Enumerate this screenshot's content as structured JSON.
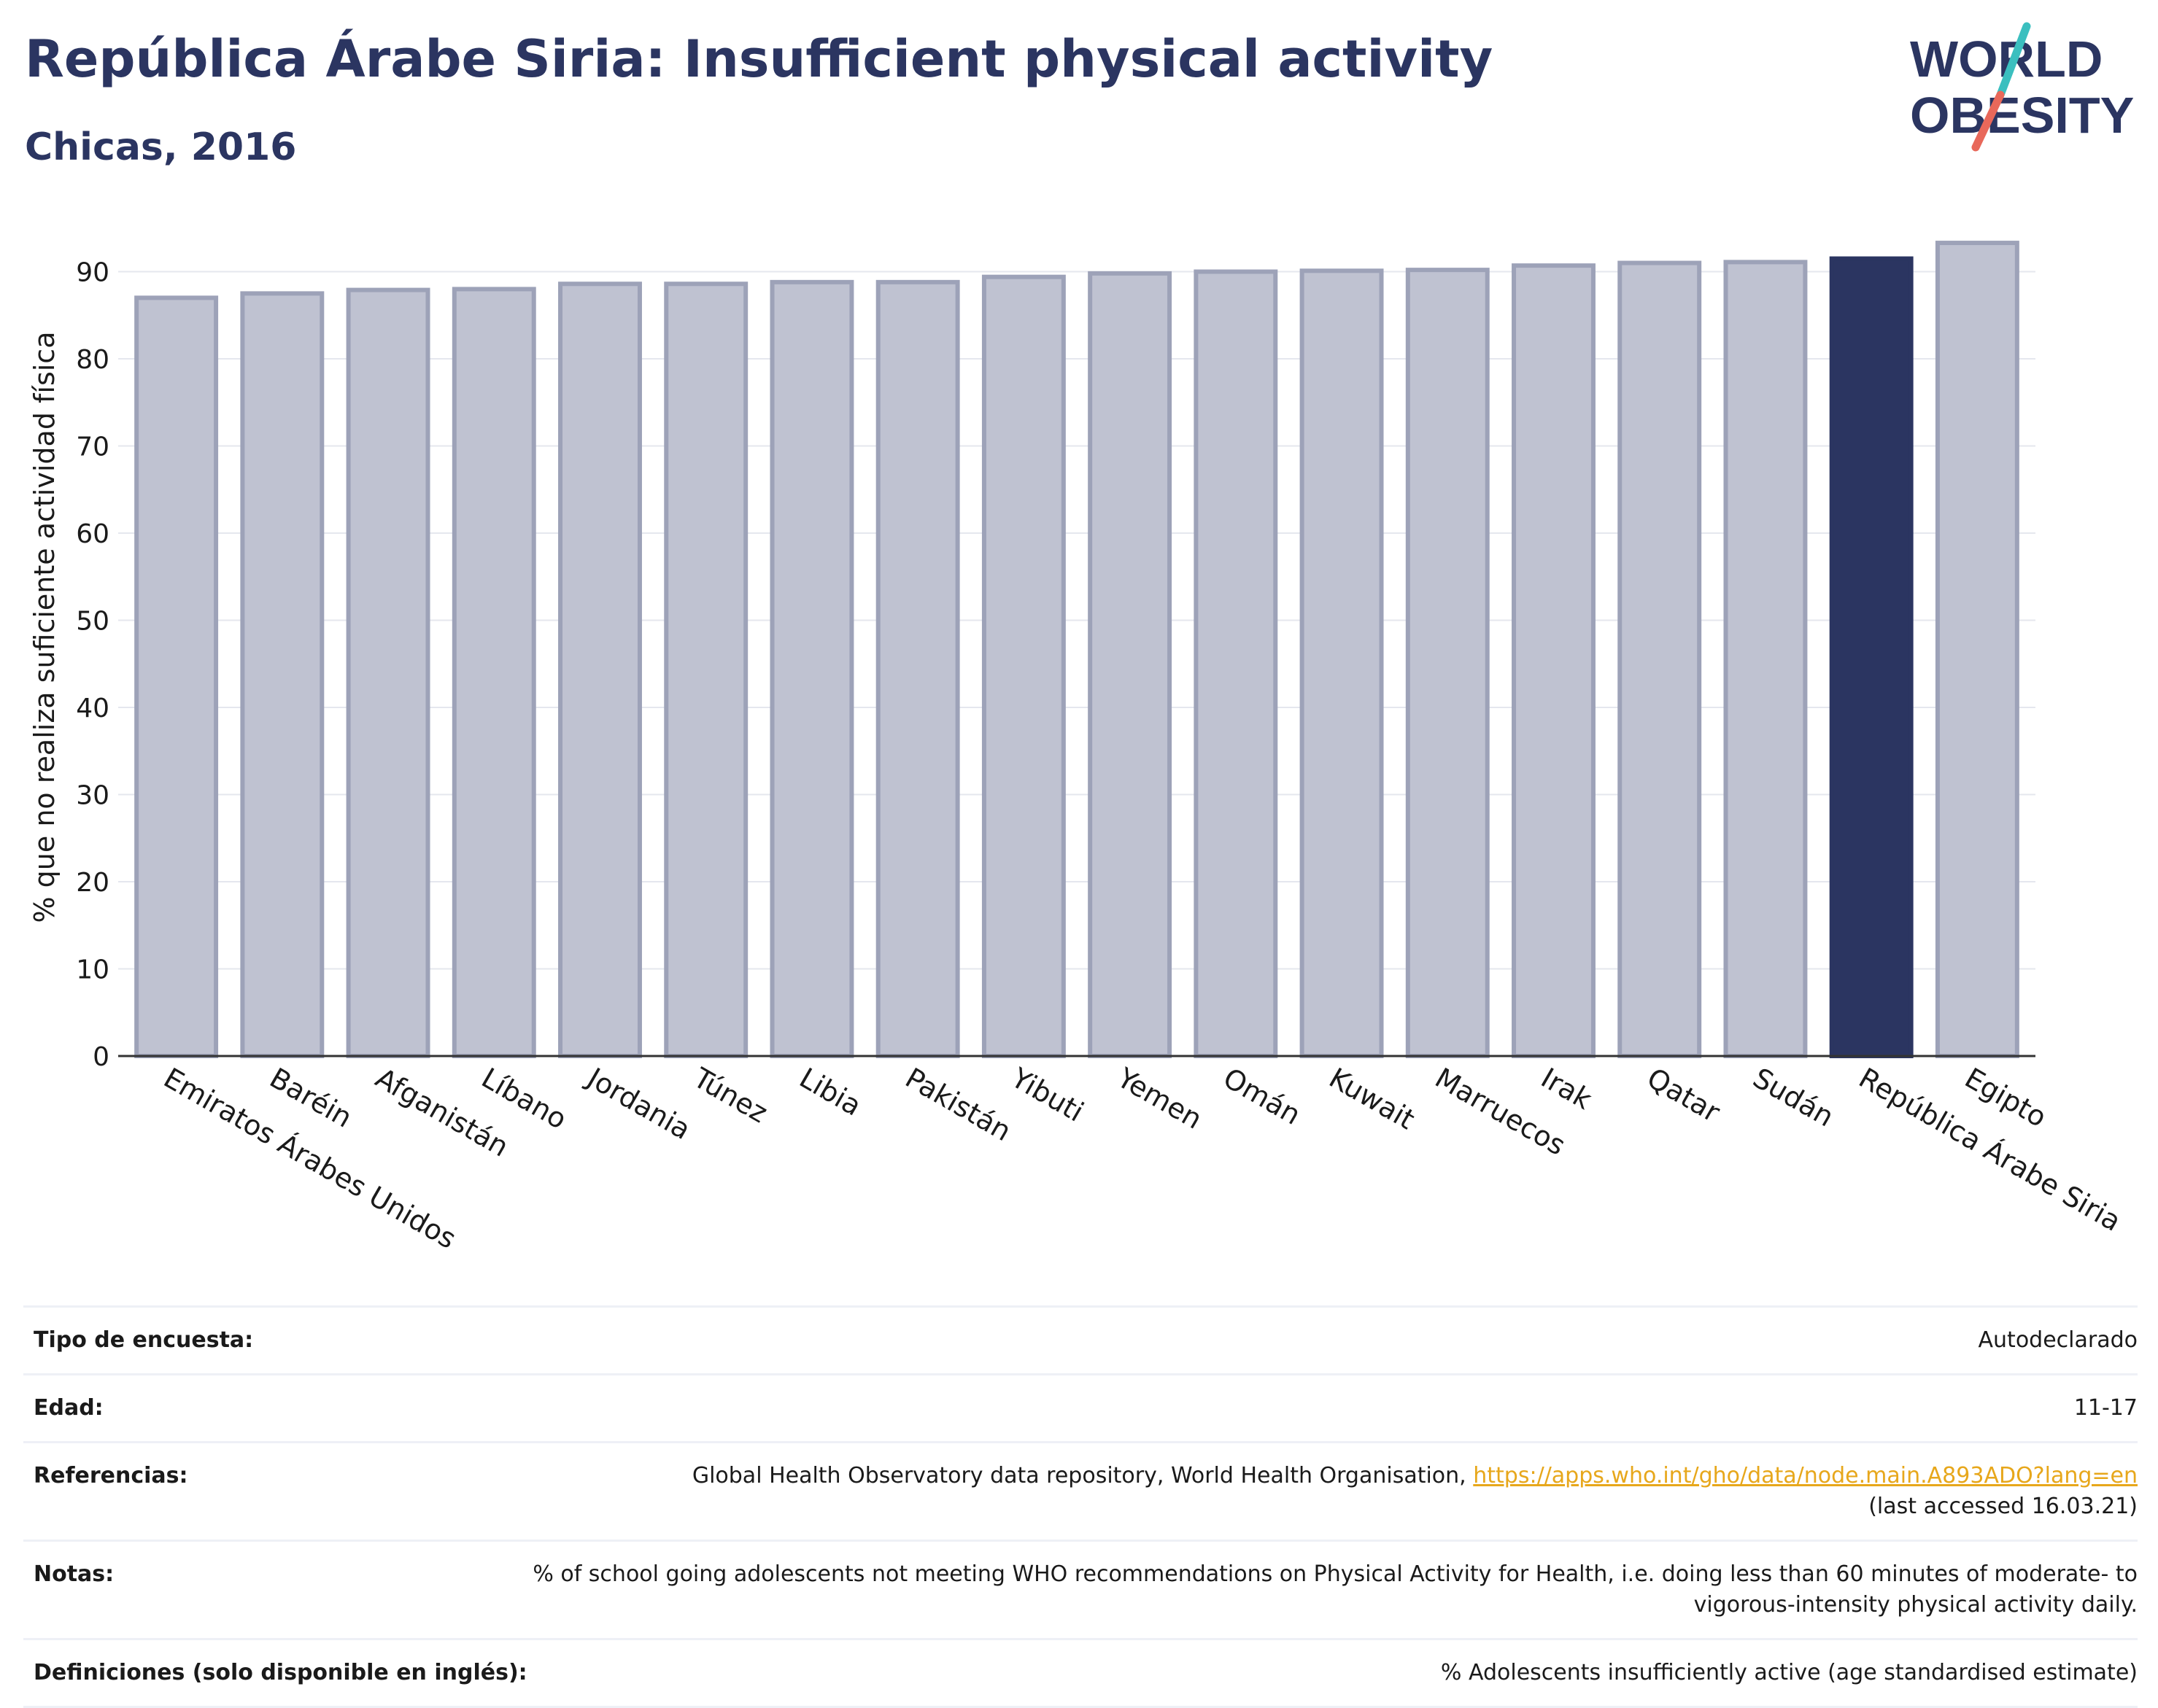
{
  "header": {
    "title": "República Árabe Siria: Insufficient physical activity",
    "subtitle": "Chicas, 2016"
  },
  "logo": {
    "line1": "WORLD",
    "line2": "OBESITY",
    "slash_colors": [
      "#3bbfbf",
      "#e8685a"
    ],
    "text_color": "#2b3561"
  },
  "colors": {
    "bar": "#bfc2d1",
    "bar_stroke": "#9da2b8",
    "highlight": "#2b3561",
    "gridline": "#e5e7ee",
    "axis": "#333333"
  },
  "chart_data": {
    "type": "bar",
    "ylabel": "% que no realiza suficiente actividad física",
    "ylim": [
      0,
      95
    ],
    "yticks": [
      0,
      10,
      20,
      30,
      40,
      50,
      60,
      70,
      80,
      90
    ],
    "grid": true,
    "highlight": "República Árabe Siria",
    "categories": [
      "Emiratos Árabes Unidos",
      "Baréin",
      "Afganistán",
      "Líbano",
      "Jordania",
      "Túnez",
      "Libia",
      "Pakistán",
      "Yibuti",
      "Yemen",
      "Omán",
      "Kuwait",
      "Marruecos",
      "Irak",
      "Qatar",
      "Sudán",
      "República Árabe Siria",
      "Egipto"
    ],
    "values": [
      87.0,
      87.5,
      87.9,
      88.0,
      88.6,
      88.6,
      88.8,
      88.8,
      89.4,
      89.8,
      90.0,
      90.1,
      90.2,
      90.7,
      91.0,
      91.1,
      91.5,
      93.3
    ]
  },
  "info": [
    {
      "label": "Tipo de encuesta:",
      "value": "Autodeclarado"
    },
    {
      "label": "Edad:",
      "value": "11-17"
    },
    {
      "label": "Referencias:",
      "value": "Global Health Observatory data repository, World Health Organisation,",
      "link": "https://apps.who.int/gho/data/node.main.A893ADO?lang=en",
      "value2": "(last accessed 16.03.21)"
    },
    {
      "label": "Notas:",
      "value": "% of school going adolescents not meeting WHO recommendations on Physical Activity for Health, i.e. doing less than 60 minutes of moderate- to vigorous-intensity physical activity daily."
    },
    {
      "label": "Definiciones (solo disponible en inglés):",
      "value": "% Adolescents insufficiently active (age standardised estimate)"
    }
  ]
}
